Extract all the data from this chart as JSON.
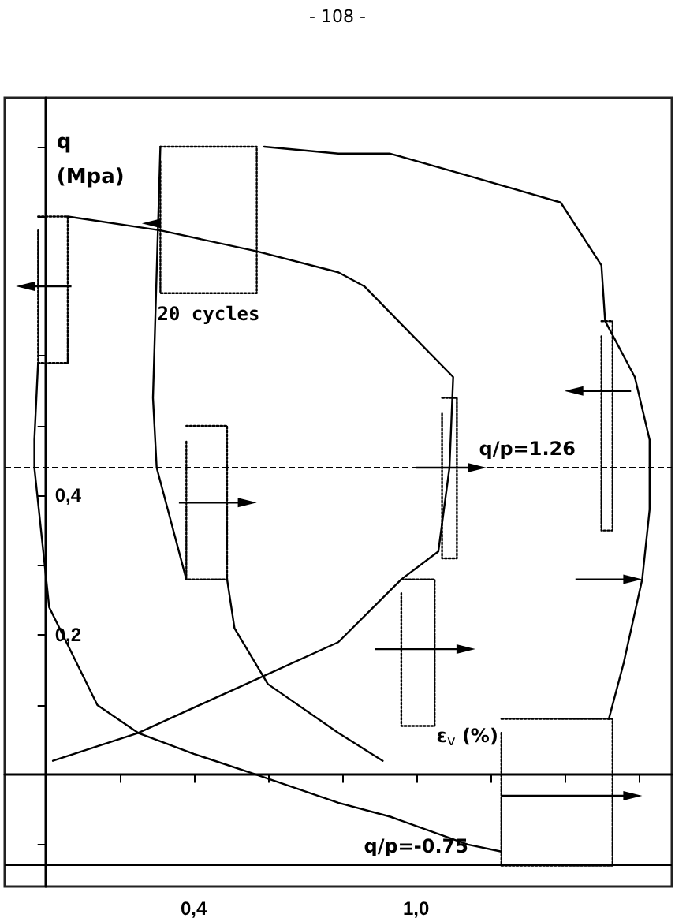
{
  "chart_data": {
    "type": "line",
    "xlabel": "ε$_{v}$ (%)",
    "ylabel": "q (Mpa)",
    "annotations": [
      "- 108 -",
      "20 cycles",
      {
        "text": "q/p=1.26",
        "x": 1.3,
        "y": 0.44
      },
      {
        "text": "q/p=-0.75",
        "x": 1.0,
        "y": -0.13
      }
    ],
    "xlim": [
      -0.11,
      1.69
    ],
    "ylim": [
      -0.16,
      0.97
    ],
    "xticks": [
      {
        "value": 0,
        "label": null
      },
      {
        "value": 0.2,
        "label": null
      },
      {
        "value": 0.4,
        "label": "0,4"
      },
      {
        "value": 0.6,
        "label": null
      },
      {
        "value": 0.8,
        "label": null
      },
      {
        "value": 1.0,
        "label": "1,0"
      },
      {
        "value": 1.2,
        "label": null
      },
      {
        "value": 1.4,
        "label": null
      },
      {
        "value": 1.6,
        "label": null
      }
    ],
    "yticks": [
      {
        "value": -0.1,
        "label": null
      },
      {
        "value": 0.1,
        "label": null
      },
      {
        "value": 0.2,
        "label": "0,2"
      },
      {
        "value": 0.3,
        "label": null
      },
      {
        "value": 0.4,
        "label": "0,4"
      },
      {
        "value": 0.5,
        "label": null
      },
      {
        "value": 0.6,
        "label": null
      },
      {
        "value": 0.7,
        "label": null
      },
      {
        "value": 0.8,
        "label": null
      },
      {
        "value": 0.9,
        "label": null
      }
    ],
    "ref_lines": [
      {
        "axis": "y",
        "value": 0.44,
        "line_style": "dashed",
        "color": "#000000"
      },
      {
        "axis": "y",
        "value": -0.13,
        "line_style": "solid",
        "color": "#000000"
      }
    ],
    "line_style": "solid",
    "marker": "none",
    "series": [
      {
        "color": "#000000",
        "x": [
          0.02,
          0.25,
          0.79,
          0.96,
          1.06,
          1.09,
          1.1,
          0.86,
          0.79,
          0.57,
          0.31,
          0.06
        ],
        "values": [
          0.02,
          0.06,
          0.19,
          0.28,
          0.32,
          0.44,
          0.57,
          0.7,
          0.72,
          0.75,
          0.78,
          0.8
        ]
      },
      {
        "color": "#000000",
        "x": [
          -0.02,
          -0.03,
          -0.03,
          0.01,
          0.14,
          0.25,
          0.4,
          0.57,
          0.79,
          0.93,
          1.14,
          1.23
        ],
        "values": [
          0.59,
          0.48,
          0.44,
          0.24,
          0.1,
          0.06,
          0.03,
          0.0,
          -0.04,
          -0.06,
          -0.1,
          -0.11
        ]
      },
      {
        "color": "#000000",
        "x": [
          1.52,
          1.56,
          1.61,
          1.63,
          1.63,
          1.59,
          1.51,
          1.5,
          1.39,
          1.13,
          0.93,
          0.79,
          0.59
        ],
        "values": [
          0.08,
          0.16,
          0.28,
          0.38,
          0.48,
          0.57,
          0.65,
          0.73,
          0.82,
          0.86,
          0.89,
          0.89,
          0.9
        ]
      },
      {
        "color": "#000000",
        "x": [
          0.31,
          0.29,
          0.3,
          0.38
        ],
        "values": [
          0.9,
          0.54,
          0.44,
          0.28
        ]
      },
      {
        "color": "#000000",
        "x": [
          0.49,
          0.51,
          0.6,
          0.79,
          0.91
        ],
        "values": [
          0.28,
          0.21,
          0.13,
          0.06,
          0.02
        ]
      },
      {
        "color": "#000000",
        "line_style": "dotted",
        "x": [
          0.96,
          1.05,
          1.05,
          0.96,
          0.96
        ],
        "values": [
          0.28,
          0.28,
          0.07,
          0.07,
          0.26
        ]
      },
      {
        "color": "#000000",
        "line_style": "dotted",
        "x": [
          1.07,
          1.11,
          1.11,
          1.07,
          1.07
        ],
        "values": [
          0.54,
          0.54,
          0.31,
          0.31,
          0.52
        ]
      },
      {
        "color": "#000000",
        "line_style": "dotted",
        "x": [
          -0.02,
          0.06,
          0.06,
          -0.02,
          -0.02
        ],
        "values": [
          0.8,
          0.8,
          0.59,
          0.59,
          0.78
        ]
      },
      {
        "color": "#000000",
        "line_style": "dotted",
        "x": [
          1.23,
          1.53,
          1.53,
          1.23,
          1.23
        ],
        "values": [
          0.08,
          0.08,
          -0.13,
          -0.13,
          0.06
        ]
      },
      {
        "color": "#000000",
        "line_style": "dotted",
        "x": [
          0.31,
          0.57,
          0.57,
          0.31,
          0.31
        ],
        "values": [
          0.9,
          0.9,
          0.69,
          0.69,
          0.88
        ]
      },
      {
        "color": "#000000",
        "line_style": "dotted",
        "x": [
          0.38,
          0.49,
          0.49,
          0.38,
          0.38
        ],
        "values": [
          0.5,
          0.5,
          0.28,
          0.28,
          0.48
        ]
      },
      {
        "color": "#000000",
        "line_style": "dotted",
        "x": [
          1.5,
          1.53,
          1.53,
          1.5,
          1.5
        ],
        "values": [
          0.65,
          0.65,
          0.35,
          0.35,
          0.63
        ]
      }
    ]
  }
}
